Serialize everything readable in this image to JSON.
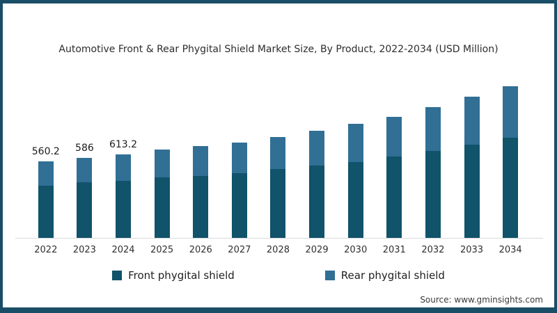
{
  "window": {
    "background": "#ffffff",
    "frame_color": "#1a4d66"
  },
  "title": "Automotive Front & Rear Phygital Shield Market Size, By Product, 2022-2034 (USD Million)",
  "source": "Source: www.gminsights.com",
  "legend": {
    "items": [
      {
        "label": "Front phygital shield",
        "color": "#10536a"
      },
      {
        "label": "Rear phygital shield",
        "color": "#316f95"
      }
    ]
  },
  "chart_data": {
    "type": "bar",
    "stacked": true,
    "title": "Automotive Front & Rear Phygital Shield Market Size, By Product, 2022-2034 (USD Million)",
    "unit": "USD Million",
    "categories": [
      "2022",
      "2023",
      "2024",
      "2025",
      "2026",
      "2027",
      "2028",
      "2029",
      "2030",
      "2031",
      "2032",
      "2033",
      "2034"
    ],
    "series": [
      {
        "name": "Front phygital shield",
        "color": "#10536a",
        "values": [
          383,
          406,
          418,
          443,
          452,
          473,
          503,
          529,
          554,
          595,
          636,
          681,
          732
        ]
      },
      {
        "name": "Rear phygital shield",
        "color": "#316f95",
        "values": [
          177.2,
          180,
          195.2,
          204,
          220,
          225,
          235,
          255,
          281,
          291,
          321,
          353,
          378
        ]
      }
    ],
    "totals": [
      560.2,
      586,
      613.2,
      647,
      672,
      698,
      738,
      784,
      835,
      886,
      957,
      1034,
      1110
    ],
    "bar_labels": [
      "560.2",
      "586",
      "613.2",
      "",
      "",
      "",
      "",
      "",
      "",
      "",
      "",
      "",
      ""
    ],
    "xlabel": "",
    "ylabel": "",
    "ylim": [
      0,
      1150
    ],
    "gridlines": false,
    "y_axis_visible": false,
    "legend_position": "bottom"
  }
}
